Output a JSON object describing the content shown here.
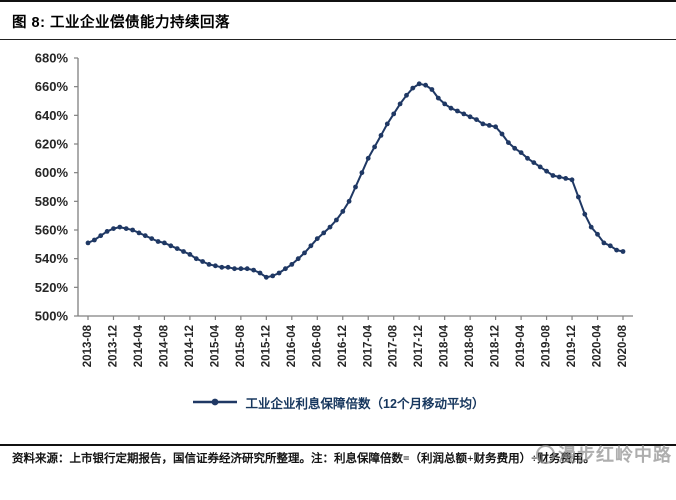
{
  "figure": {
    "title": "图 8:  工业企业偿债能力持续回落",
    "source_note": "资料来源：上市银行定期报告，国信证券经济研究所整理。注：利息保障倍数=（利润总额+财务费用）÷财务费用。",
    "watermark_text": "漫步红岭中路"
  },
  "chart_data": {
    "type": "line",
    "title": "",
    "xlabel": "",
    "ylabel": "",
    "ylim": [
      500,
      680
    ],
    "grid": false,
    "legend_position": "bottom",
    "line_color": "#1F3864",
    "marker": "circle",
    "y_ticks": [
      "500%",
      "520%",
      "540%",
      "560%",
      "580%",
      "600%",
      "620%",
      "640%",
      "660%",
      "680%"
    ],
    "x_tick_labels": [
      "2013-08",
      "2013-12",
      "2014-04",
      "2014-08",
      "2014-12",
      "2015-04",
      "2015-08",
      "2015-12",
      "2016-04",
      "2016-08",
      "2016-12",
      "2017-04",
      "2017-08",
      "2017-12",
      "2018-04",
      "2018-08",
      "2018-12",
      "2019-04",
      "2019-08",
      "2019-12",
      "2020-04",
      "2020-08"
    ],
    "x": [
      "2013-08",
      "2013-09",
      "2013-10",
      "2013-11",
      "2013-12",
      "2014-01",
      "2014-02",
      "2014-03",
      "2014-04",
      "2014-05",
      "2014-06",
      "2014-07",
      "2014-08",
      "2014-09",
      "2014-10",
      "2014-11",
      "2014-12",
      "2015-01",
      "2015-02",
      "2015-03",
      "2015-04",
      "2015-05",
      "2015-06",
      "2015-07",
      "2015-08",
      "2015-09",
      "2015-10",
      "2015-11",
      "2015-12",
      "2016-01",
      "2016-02",
      "2016-03",
      "2016-04",
      "2016-05",
      "2016-06",
      "2016-07",
      "2016-08",
      "2016-09",
      "2016-10",
      "2016-11",
      "2016-12",
      "2017-01",
      "2017-02",
      "2017-03",
      "2017-04",
      "2017-05",
      "2017-06",
      "2017-07",
      "2017-08",
      "2017-09",
      "2017-10",
      "2017-11",
      "2017-12",
      "2018-01",
      "2018-02",
      "2018-03",
      "2018-04",
      "2018-05",
      "2018-06",
      "2018-07",
      "2018-08",
      "2018-09",
      "2018-10",
      "2018-11",
      "2018-12",
      "2019-01",
      "2019-02",
      "2019-03",
      "2019-04",
      "2019-05",
      "2019-06",
      "2019-07",
      "2019-08",
      "2019-09",
      "2019-10",
      "2019-11",
      "2019-12",
      "2020-01",
      "2020-02",
      "2020-03",
      "2020-04",
      "2020-05",
      "2020-06",
      "2020-07",
      "2020-08"
    ],
    "series": [
      {
        "name": "工业企业利息保障倍数（12个月移动平均）",
        "values": [
          551,
          553,
          556,
          559,
          561,
          562,
          561,
          560,
          558,
          556,
          554,
          552,
          551,
          549,
          547,
          545,
          543,
          540,
          538,
          536,
          535,
          534,
          534,
          533,
          533,
          533,
          532,
          530,
          527,
          528,
          530,
          533,
          536,
          540,
          544,
          549,
          554,
          558,
          562,
          567,
          573,
          580,
          590,
          600,
          610,
          618,
          626,
          634,
          641,
          648,
          654,
          659,
          662,
          661,
          658,
          652,
          648,
          645,
          643,
          641,
          639,
          637,
          634,
          633,
          632,
          627,
          621,
          617,
          614,
          610,
          607,
          604,
          601,
          598,
          597,
          596,
          595,
          583,
          571,
          562,
          557,
          551,
          549,
          546,
          545
        ]
      }
    ]
  }
}
